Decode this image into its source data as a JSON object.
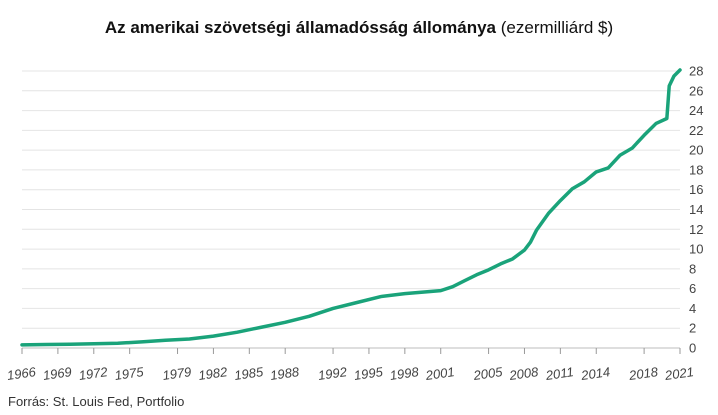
{
  "chart_data": {
    "type": "line",
    "title": "Az amerikai szövetségi államadósság állománya",
    "title_unit": "(ezermilliárd $)",
    "source": "Forrás: St. Louis Fed, Portfolio",
    "xlim": [
      1966,
      2021
    ],
    "ylim": [
      0,
      28
    ],
    "y_ticks": [
      0,
      2,
      4,
      6,
      8,
      10,
      12,
      14,
      16,
      18,
      20,
      22,
      24,
      26,
      28
    ],
    "x_ticks": [
      "1966",
      "1969",
      "1972",
      "1975",
      "1979",
      "1982",
      "1985",
      "1988",
      "1992",
      "1995",
      "1998",
      "2001",
      "2005",
      "2008",
      "2011",
      "2014",
      "2018",
      "2021"
    ],
    "grid": true,
    "line_color": "#1aa37a",
    "series": [
      {
        "x": [
          1966,
          1968,
          1970,
          1972,
          1974,
          1976,
          1978,
          1980,
          1982,
          1984,
          1986,
          1988,
          1990,
          1992,
          1994,
          1996,
          1998,
          1999,
          2000,
          2001,
          2002,
          2003,
          2004,
          2005,
          2006,
          2007,
          2008,
          2008.5,
          2009,
          2010,
          2011,
          2012,
          2013,
          2014,
          2015,
          2016,
          2017,
          2018,
          2019,
          2019.9,
          2020.1,
          2020.5,
          2021
        ],
        "y": [
          0.32,
          0.35,
          0.38,
          0.43,
          0.48,
          0.62,
          0.78,
          0.91,
          1.2,
          1.6,
          2.1,
          2.6,
          3.2,
          4.0,
          4.6,
          5.2,
          5.5,
          5.6,
          5.7,
          5.8,
          6.2,
          6.8,
          7.4,
          7.9,
          8.5,
          9.0,
          9.9,
          10.7,
          11.9,
          13.6,
          14.9,
          16.1,
          16.8,
          17.8,
          18.2,
          19.5,
          20.2,
          21.5,
          22.7,
          23.2,
          26.5,
          27.5,
          28.1
        ]
      }
    ]
  }
}
